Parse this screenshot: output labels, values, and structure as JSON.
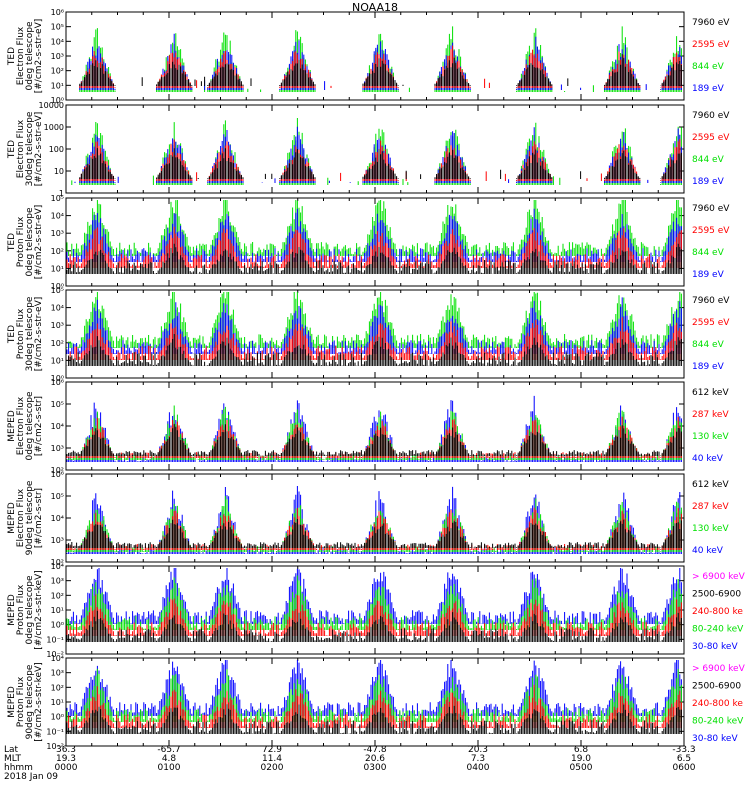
{
  "title": "NOAA18",
  "colors": {
    "black": "#000000",
    "red": "#ff0000",
    "green": "#00e000",
    "blue": "#0000ff",
    "magenta": "#ff00ff"
  },
  "chart_data": [
    {
      "type": "scatter",
      "ylabel": [
        "TED",
        "Electron Flux",
        "0deg telescope",
        "[#/cm2-s-str-eV]"
      ],
      "log": true,
      "yticks": [
        "10⁰",
        "10¹",
        "10²",
        "10³",
        "10⁴",
        "10⁵",
        "10⁶"
      ],
      "ylim": [
        1,
        1000000
      ],
      "legend": [
        {
          "name": "7960 eV",
          "color": "#000000"
        },
        {
          "name": "2595 eV",
          "color": "#ff0000"
        },
        {
          "name": "844 eV",
          "color": "#00e000"
        },
        {
          "name": "189 eV",
          "color": "#0000ff"
        }
      ]
    },
    {
      "type": "scatter",
      "ylabel": [
        "TED",
        "Electron Flux",
        "30deg telescope",
        "[#/cm2-s-str-eV]"
      ],
      "log": true,
      "yticks": [
        "1",
        "10",
        "100",
        "1000",
        "10000"
      ],
      "ylim": [
        1,
        10000
      ],
      "legend": [
        {
          "name": "7960 eV",
          "color": "#000000"
        },
        {
          "name": "2595 eV",
          "color": "#ff0000"
        },
        {
          "name": "844 eV",
          "color": "#00e000"
        },
        {
          "name": "189 eV",
          "color": "#0000ff"
        }
      ]
    },
    {
      "type": "scatter",
      "ylabel": [
        "TED",
        "Proton Flux",
        "0deg telescope",
        "[#/cm2-s-str-eV]"
      ],
      "log": true,
      "yticks": [
        "10⁰",
        "10¹",
        "10²",
        "10³",
        "10⁴",
        "10⁵"
      ],
      "ylim": [
        1,
        100000
      ],
      "legend": [
        {
          "name": "7960 eV",
          "color": "#000000"
        },
        {
          "name": "2595 eV",
          "color": "#ff0000"
        },
        {
          "name": "844 eV",
          "color": "#00e000"
        },
        {
          "name": "189 eV",
          "color": "#0000ff"
        }
      ]
    },
    {
      "type": "scatter",
      "ylabel": [
        "TED",
        "Proton Flux",
        "30deg telescope",
        "[#/cm2-s-str-eV]"
      ],
      "log": true,
      "yticks": [
        "10⁰",
        "10¹",
        "10²",
        "10³",
        "10⁴",
        "10⁵"
      ],
      "ylim": [
        1,
        100000
      ],
      "legend": [
        {
          "name": "7960 eV",
          "color": "#000000"
        },
        {
          "name": "2595 eV",
          "color": "#ff0000"
        },
        {
          "name": "844 eV",
          "color": "#00e000"
        },
        {
          "name": "189 eV",
          "color": "#0000ff"
        }
      ]
    },
    {
      "type": "scatter",
      "ylabel": [
        "MEPED",
        "Electron Flux",
        "0deg telescope",
        "[#/cm2-s-str]"
      ],
      "log": true,
      "yticks": [
        "10²",
        "10³",
        "10⁴",
        "10⁵",
        "10⁶"
      ],
      "ylim": [
        100,
        1000000
      ],
      "legend": [
        {
          "name": "612 keV",
          "color": "#000000"
        },
        {
          "name": "287 keV",
          "color": "#ff0000"
        },
        {
          "name": "130 keV",
          "color": "#00e000"
        },
        {
          "name": "40 keV",
          "color": "#0000ff"
        }
      ]
    },
    {
      "type": "scatter",
      "ylabel": [
        "MEPED",
        "Electron Flux",
        "90deg telescope",
        "[#/cm2-s-str]"
      ],
      "log": true,
      "yticks": [
        "10²",
        "10³",
        "10⁴",
        "10⁵",
        "10⁶"
      ],
      "ylim": [
        100,
        1000000
      ],
      "legend": [
        {
          "name": "612 keV",
          "color": "#000000"
        },
        {
          "name": "287 keV",
          "color": "#ff0000"
        },
        {
          "name": "130 keV",
          "color": "#00e000"
        },
        {
          "name": "40 keV",
          "color": "#0000ff"
        }
      ]
    },
    {
      "type": "scatter",
      "ylabel": [
        "MEPED",
        "Proton Flux",
        "0deg telescope",
        "[#/cm2-s-str-keV]"
      ],
      "log": true,
      "yticks": [
        "10⁻²",
        "10⁻¹",
        "10⁰",
        "10¹",
        "10²",
        "10³",
        "10⁴"
      ],
      "ylim": [
        0.01,
        10000
      ],
      "legend": [
        {
          "name": "> 6900 keV",
          "color": "#ff00ff"
        },
        {
          "name": "2500-6900",
          "color": "#000000"
        },
        {
          "name": "240-800 ke",
          "color": "#ff0000"
        },
        {
          "name": "80-240 keV",
          "color": "#00e000"
        },
        {
          "name": "30-80 keV",
          "color": "#0000ff"
        }
      ]
    },
    {
      "type": "scatter",
      "ylabel": [
        "MEPED",
        "Proton Flux",
        "90deg telescope",
        "[#/cm2-s-str-keV]"
      ],
      "log": true,
      "yticks": [
        "10⁻²",
        "10⁻¹",
        "10⁰",
        "10¹",
        "10²",
        "10³",
        "10⁴"
      ],
      "ylim": [
        0.01,
        10000
      ],
      "legend": [
        {
          "name": "> 6900 keV",
          "color": "#ff00ff"
        },
        {
          "name": "2500-6900",
          "color": "#000000"
        },
        {
          "name": "240-800 ke",
          "color": "#ff0000"
        },
        {
          "name": "80-240 keV",
          "color": "#00e000"
        },
        {
          "name": "30-80 keV",
          "color": "#0000ff"
        }
      ]
    }
  ],
  "x_axis": {
    "row_labels": [
      "Lat",
      "MLT",
      "hhmm",
      "2018 Jan 09"
    ],
    "ticks": [
      {
        "lat": "36.3",
        "mlt": "19.3",
        "hhmm": "0000"
      },
      {
        "lat": "-65.7",
        "mlt": "4.8",
        "hhmm": "0100"
      },
      {
        "lat": "72.9",
        "mlt": "11.4",
        "hhmm": "0200"
      },
      {
        "lat": "-47.8",
        "mlt": "20.6",
        "hhmm": "0300"
      },
      {
        "lat": "20.3",
        "mlt": "7.3",
        "hhmm": "0400"
      },
      {
        "lat": "6.8",
        "mlt": "19.0",
        "hhmm": "0500"
      },
      {
        "lat": "-33.3",
        "mlt": "6.5",
        "hhmm": "0600"
      }
    ],
    "xlim_hours": [
      0,
      6
    ]
  }
}
